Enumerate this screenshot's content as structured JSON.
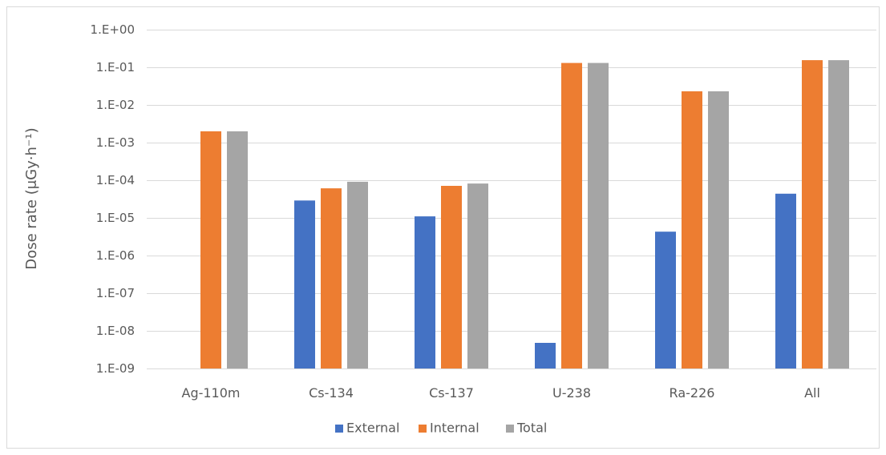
{
  "chart_data": {
    "type": "bar",
    "categories": [
      "Ag-110m",
      "Cs-134",
      "Cs-137",
      "U-238",
      "Ra-226",
      "All"
    ],
    "series": [
      {
        "name": "External",
        "color": "#4472C4",
        "values": [
          null,
          2.9e-05,
          1.1e-05,
          4.8e-09,
          4.3e-06,
          4.4e-05
        ]
      },
      {
        "name": "Internal",
        "color": "#ED7D31",
        "values": [
          0.002,
          6.1e-05,
          7.1e-05,
          0.13,
          0.023,
          0.155
        ]
      },
      {
        "name": "Total",
        "color": "#A5A5A5",
        "values": [
          0.002,
          9.1e-05,
          8.2e-05,
          0.13,
          0.023,
          0.155
        ]
      }
    ],
    "ylabel": "Dose rate (μGy·h⁻¹)",
    "yscale": "log",
    "ylim": [
      1e-09,
      1
    ],
    "y_ticks": [
      {
        "value": 1,
        "label": "1.E+00"
      },
      {
        "value": 0.1,
        "label": "1.E-01"
      },
      {
        "value": 0.01,
        "label": "1.E-02"
      },
      {
        "value": 0.001,
        "label": "1.E-03"
      },
      {
        "value": 0.0001,
        "label": "1.E-04"
      },
      {
        "value": 1e-05,
        "label": "1.E-05"
      },
      {
        "value": 1e-06,
        "label": "1.E-06"
      },
      {
        "value": 1e-07,
        "label": "1.E-07"
      },
      {
        "value": 1e-08,
        "label": "1.E-08"
      },
      {
        "value": 1e-09,
        "label": "1.E-09"
      }
    ],
    "grid": true,
    "legend_position": "bottom",
    "grid_color": "#D9D9D9",
    "text_color": "#595959"
  }
}
